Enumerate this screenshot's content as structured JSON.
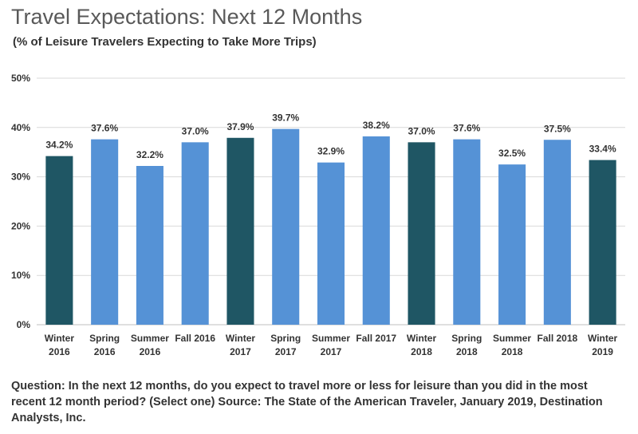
{
  "chart_data": {
    "type": "bar",
    "title": "Travel Expectations: Next 12 Months",
    "subtitle": "(% of Leisure Travelers Expecting to Take More Trips)",
    "categories": [
      [
        "Winter",
        "2016"
      ],
      [
        "Spring",
        "2016"
      ],
      [
        "Summer",
        "2016"
      ],
      [
        "Fall 2016"
      ],
      [
        "Winter",
        "2017"
      ],
      [
        "Spring",
        "2017"
      ],
      [
        "Summer",
        "2017"
      ],
      [
        "Fall 2017"
      ],
      [
        "Winter",
        "2018"
      ],
      [
        "Spring",
        "2018"
      ],
      [
        "Summer",
        "2018"
      ],
      [
        "Fall 2018"
      ],
      [
        "Winter",
        "2019"
      ]
    ],
    "values": [
      34.2,
      37.6,
      32.2,
      37.0,
      37.9,
      39.7,
      32.9,
      38.2,
      37.0,
      37.6,
      32.5,
      37.5,
      33.4
    ],
    "data_labels": [
      "34.2%",
      "37.6%",
      "32.2%",
      "37.0%",
      "37.9%",
      "39.7%",
      "32.9%",
      "38.2%",
      "37.0%",
      "37.6%",
      "32.5%",
      "37.5%",
      "33.4%"
    ],
    "bar_colors": [
      "#1f5664",
      "#5592d6",
      "#5592d6",
      "#5592d6",
      "#1f5664",
      "#5592d6",
      "#5592d6",
      "#5592d6",
      "#1f5664",
      "#5592d6",
      "#5592d6",
      "#5592d6",
      "#1f5664"
    ],
    "ylim": [
      0,
      50
    ],
    "yticks": [
      0,
      10,
      20,
      30,
      40,
      50
    ],
    "ytick_labels": [
      "0%",
      "10%",
      "20%",
      "30%",
      "40%",
      "50%"
    ],
    "grid": true,
    "xlabel": "",
    "ylabel": ""
  },
  "note": "Question:  In the next 12 months, do you expect to travel more or less for leisure than you did in the most recent 12 month period? (Select one) Source: The State of the American Traveler,  January 2019, Destination Analysts, Inc."
}
